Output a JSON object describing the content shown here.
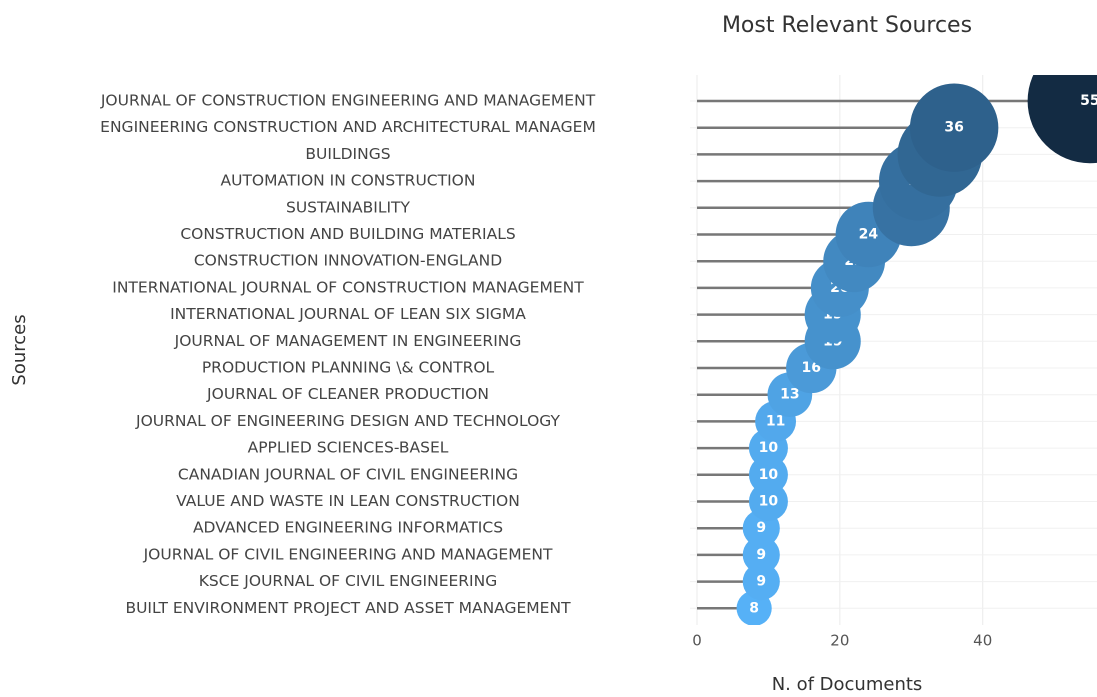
{
  "chart_data": {
    "type": "lollipop",
    "title": "Most Relevant Sources",
    "x_label": "N. of Documents",
    "y_label": "Sources",
    "categories": [
      "JOURNAL OF CONSTRUCTION ENGINEERING AND MANAGEMENT",
      "ENGINEERING CONSTRUCTION AND ARCHITECTURAL MANAGEM",
      "BUILDINGS",
      "AUTOMATION IN CONSTRUCTION",
      "SUSTAINABILITY",
      "CONSTRUCTION AND BUILDING MATERIALS",
      "CONSTRUCTION INNOVATION-ENGLAND",
      "INTERNATIONAL JOURNAL OF CONSTRUCTION MANAGEMENT",
      "INTERNATIONAL JOURNAL OF LEAN SIX SIGMA",
      "JOURNAL OF MANAGEMENT IN ENGINEERING",
      "PRODUCTION PLANNING \\& CONTROL",
      "JOURNAL OF CLEANER PRODUCTION",
      "JOURNAL OF ENGINEERING DESIGN AND TECHNOLOGY",
      "APPLIED SCIENCES-BASEL",
      "CANADIAN JOURNAL OF CIVIL ENGINEERING",
      "VALUE AND WASTE IN LEAN CONSTRUCTION",
      "ADVANCED ENGINEERING INFORMATICS",
      "JOURNAL OF CIVIL ENGINEERING AND MANAGEMENT",
      "KSCE JOURNAL OF CIVIL ENGINEERING",
      "BUILT ENVIRONMENT PROJECT AND ASSET MANAGEMENT"
    ],
    "values": [
      55,
      36,
      34,
      31,
      30,
      24,
      22,
      20,
      19,
      19,
      16,
      13,
      11,
      10,
      10,
      10,
      9,
      9,
      9,
      8
    ],
    "xlim": [
      0,
      56
    ],
    "xticks": [
      0,
      20,
      40
    ],
    "grid": true,
    "color_low": "#56B1F7",
    "color_high": "#132B43",
    "stem_color": "#777777"
  }
}
